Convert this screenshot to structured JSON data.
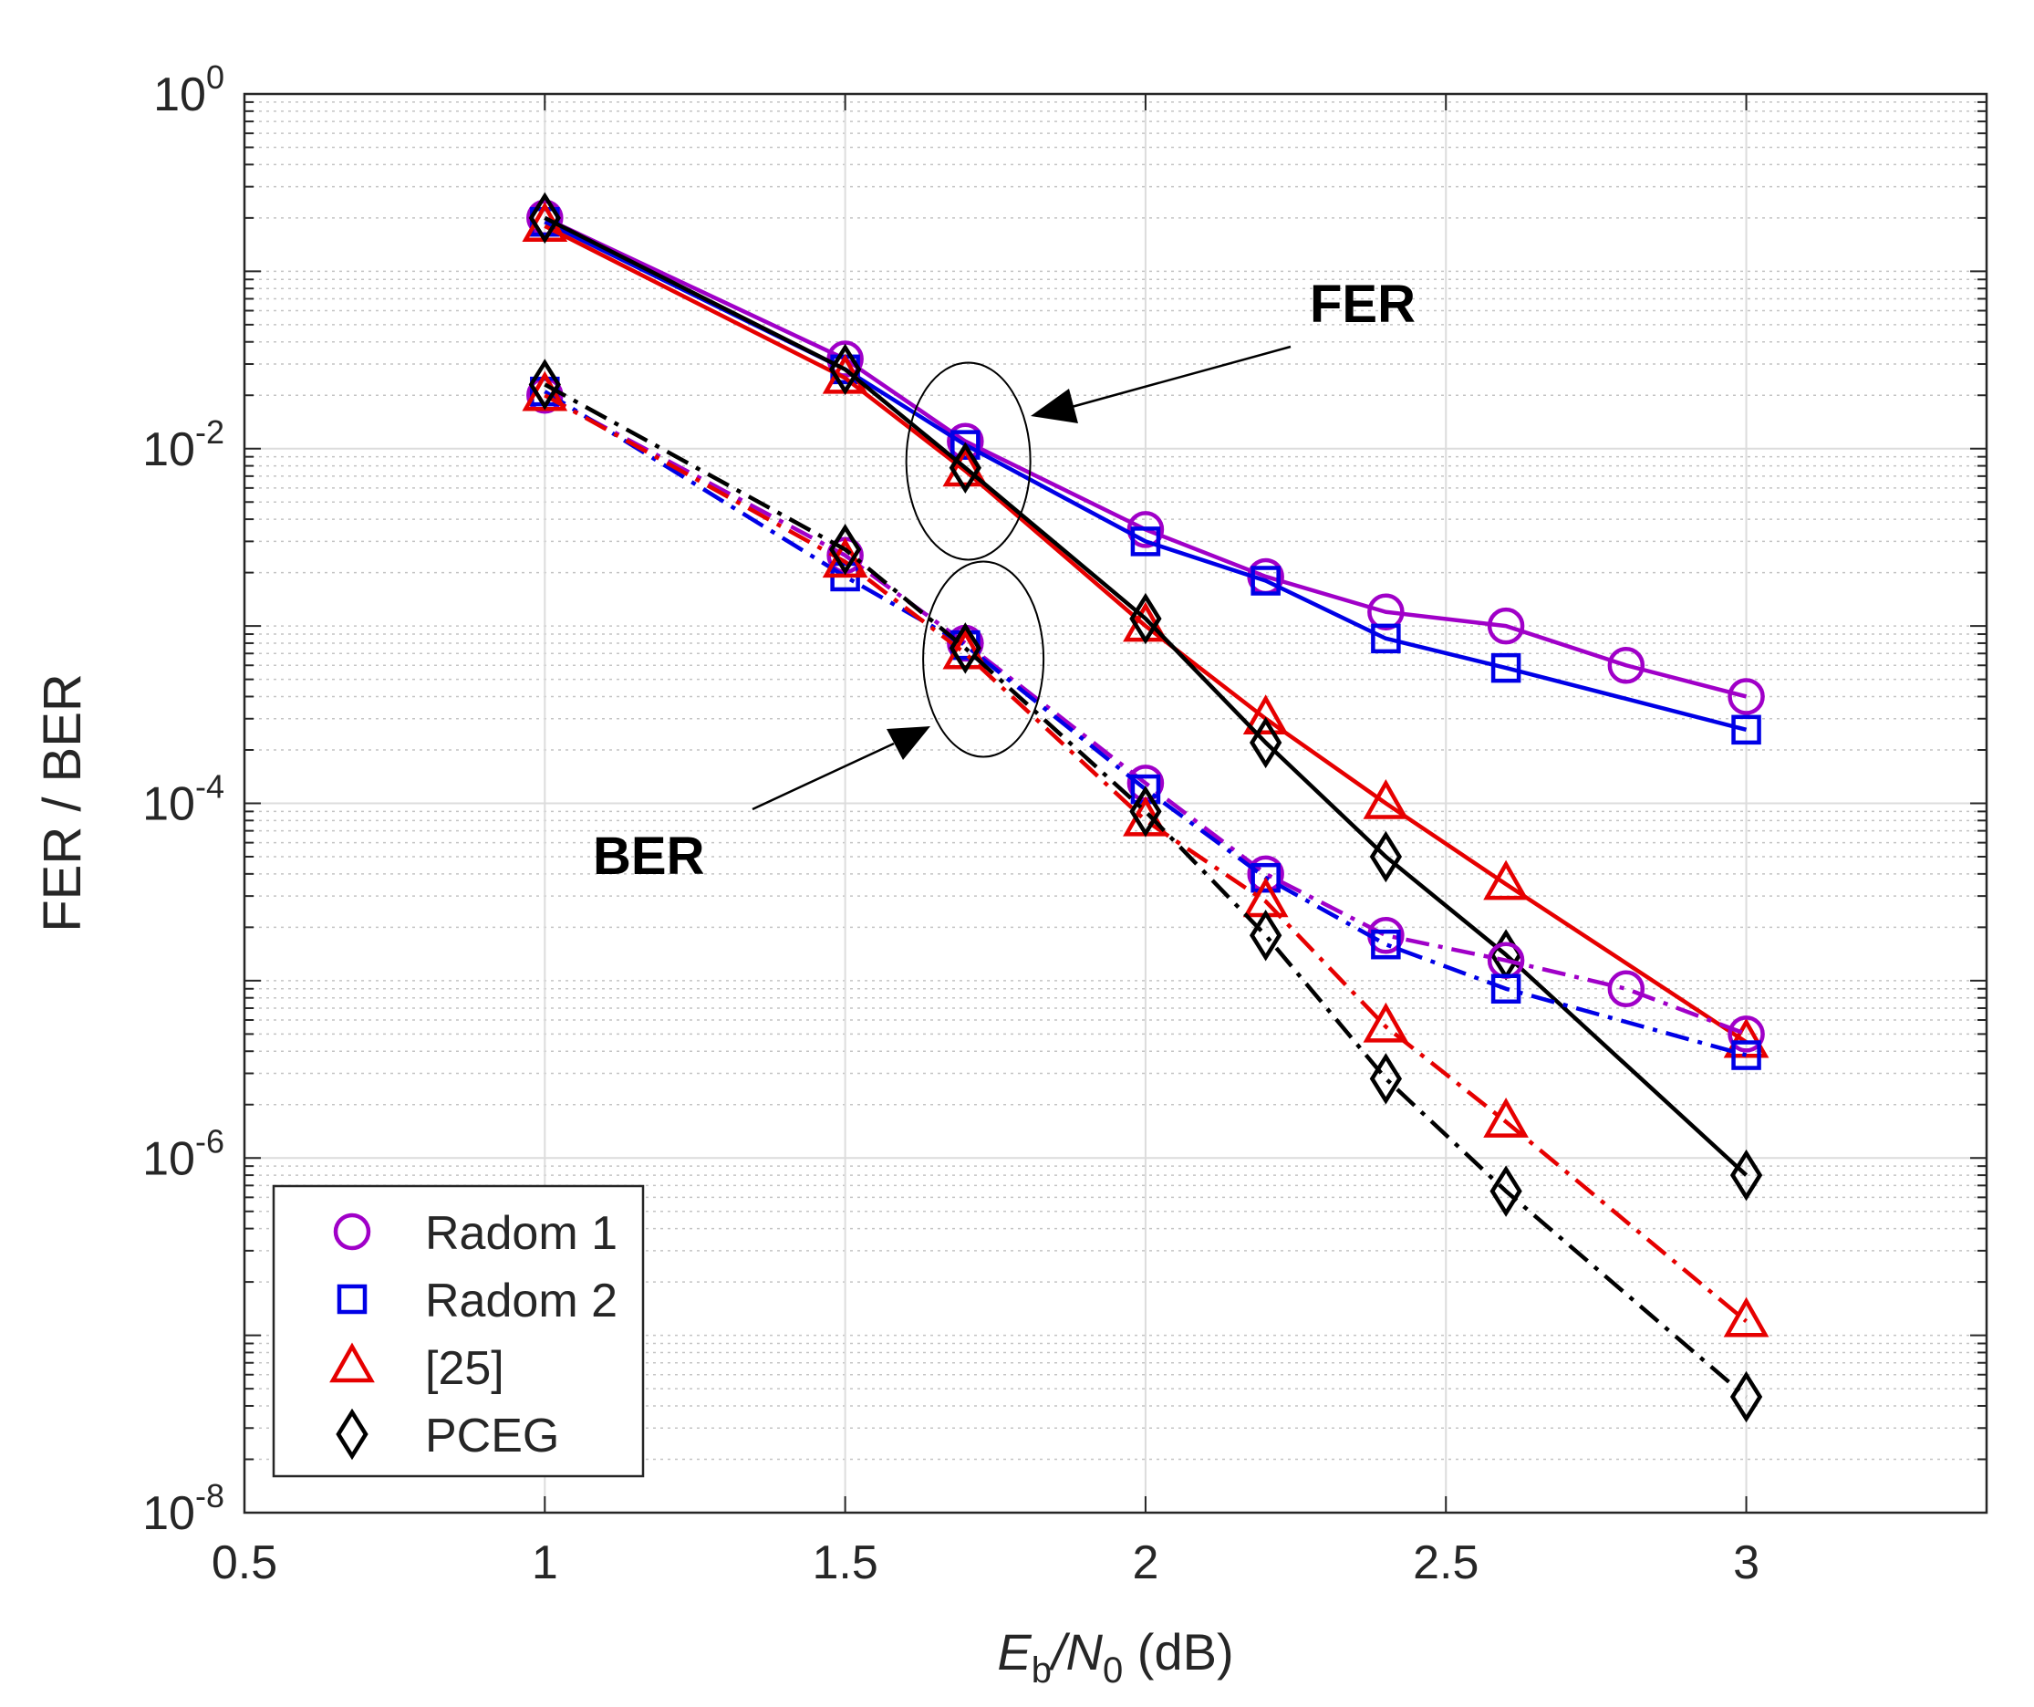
{
  "chart_data": {
    "type": "line",
    "title": "",
    "xlabel_main": "E",
    "xlabel_sub1": "b",
    "xlabel_slash": "/N",
    "xlabel_sub2": "0",
    "xlabel_unit": " (dB)",
    "ylabel": "FER / BER",
    "xlim": [
      0.5,
      3.4
    ],
    "ylim": [
      1e-08,
      1
    ],
    "yscale": "log",
    "grid": true,
    "x_ticks": [
      {
        "value": 0.5,
        "label": "0.5"
      },
      {
        "value": 1,
        "label": "1"
      },
      {
        "value": 1.5,
        "label": "1.5"
      },
      {
        "value": 2,
        "label": "2"
      },
      {
        "value": 2.5,
        "label": "2.5"
      },
      {
        "value": 3,
        "label": "3"
      }
    ],
    "y_ticks": [
      {
        "value": 1.0,
        "base": "10",
        "exp": "0"
      },
      {
        "value": 0.01,
        "base": "10",
        "exp": "-2"
      },
      {
        "value": 0.0001,
        "base": "10",
        "exp": "-4"
      },
      {
        "value": 1e-06,
        "base": "10",
        "exp": "-6"
      },
      {
        "value": 1e-08,
        "base": "10",
        "exp": "-8"
      }
    ],
    "series": [
      {
        "name": "Radom 1",
        "metric": "FER",
        "color": "#a000c8",
        "marker": "circle",
        "dash": "solid",
        "x": [
          1,
          1.5,
          1.7,
          2,
          2.2,
          2.4,
          2.6,
          2.8,
          3
        ],
        "y": [
          0.2,
          0.032,
          0.011,
          0.0035,
          0.0019,
          0.0012,
          0.001,
          0.0006,
          0.0004
        ]
      },
      {
        "name": "Radom 2",
        "metric": "FER",
        "color": "#0000e6",
        "marker": "square",
        "dash": "solid",
        "x": [
          1,
          1.5,
          1.7,
          2,
          2.2,
          2.4,
          2.6,
          3
        ],
        "y": [
          0.19,
          0.028,
          0.0105,
          0.003,
          0.0018,
          0.00085,
          0.00058,
          0.00026
        ]
      },
      {
        "name": "[25]",
        "metric": "FER",
        "color": "#e60000",
        "marker": "triangle",
        "dash": "solid",
        "x": [
          1,
          1.5,
          1.7,
          2,
          2.2,
          2.4,
          2.6,
          3
        ],
        "y": [
          0.18,
          0.025,
          0.0075,
          0.001,
          0.0003,
          0.0001,
          3.5e-05,
          4.5e-06
        ]
      },
      {
        "name": "PCEG",
        "metric": "FER",
        "color": "#000000",
        "marker": "diamond",
        "dash": "solid",
        "x": [
          1,
          1.5,
          1.7,
          2,
          2.2,
          2.4,
          2.6,
          3
        ],
        "y": [
          0.2,
          0.028,
          0.0078,
          0.0011,
          0.00022,
          5e-05,
          1.4e-05,
          8e-07
        ]
      },
      {
        "name": "Radom 1",
        "metric": "BER",
        "color": "#a000c8",
        "marker": "circle",
        "dash": "dashdot",
        "x": [
          1,
          1.5,
          1.7,
          2,
          2.2,
          2.4,
          2.6,
          2.8,
          3
        ],
        "y": [
          0.02,
          0.0025,
          0.0008,
          0.00013,
          4e-05,
          1.8e-05,
          1.3e-05,
          9e-06,
          5e-06
        ]
      },
      {
        "name": "Radom 2",
        "metric": "BER",
        "color": "#0000e6",
        "marker": "square",
        "dash": "dashdot",
        "x": [
          1,
          1.5,
          1.7,
          2,
          2.2,
          2.4,
          2.6,
          3
        ],
        "y": [
          0.021,
          0.0019,
          0.00078,
          0.00012,
          3.8e-05,
          1.6e-05,
          9e-06,
          3.8e-06
        ]
      },
      {
        "name": "[25]",
        "metric": "BER",
        "color": "#e60000",
        "marker": "triangle",
        "dash": "dashdot",
        "x": [
          1,
          1.5,
          1.7,
          2,
          2.2,
          2.4,
          2.6,
          3
        ],
        "y": [
          0.02,
          0.0023,
          0.0007,
          8e-05,
          2.8e-05,
          5.5e-06,
          1.6e-06,
          1.2e-07
        ]
      },
      {
        "name": "PCEG",
        "metric": "BER",
        "color": "#000000",
        "marker": "diamond",
        "dash": "dashdot",
        "x": [
          1,
          1.5,
          1.7,
          2,
          2.2,
          2.4,
          2.6,
          3
        ],
        "y": [
          0.023,
          0.0027,
          0.00075,
          9e-05,
          1.8e-05,
          2.8e-06,
          6.5e-07,
          4.5e-08
        ]
      }
    ],
    "legend": {
      "placement": "bottom-left",
      "entries": [
        {
          "label": "Radom 1",
          "marker": "circle",
          "color": "#a000c8"
        },
        {
          "label": "Radom 2",
          "marker": "square",
          "color": "#0000e6"
        },
        {
          "label": "[25]",
          "marker": "triangle",
          "color": "#e60000"
        },
        {
          "label": "PCEG",
          "marker": "diamond",
          "color": "#000000"
        }
      ]
    },
    "annotations": {
      "fer_label": "FER",
      "ber_label": "BER",
      "fer_ellipse_center": {
        "x": 1.705,
        "y": 0.0085
      },
      "ber_ellipse_center": {
        "x": 1.73,
        "y": 0.00065
      }
    }
  }
}
